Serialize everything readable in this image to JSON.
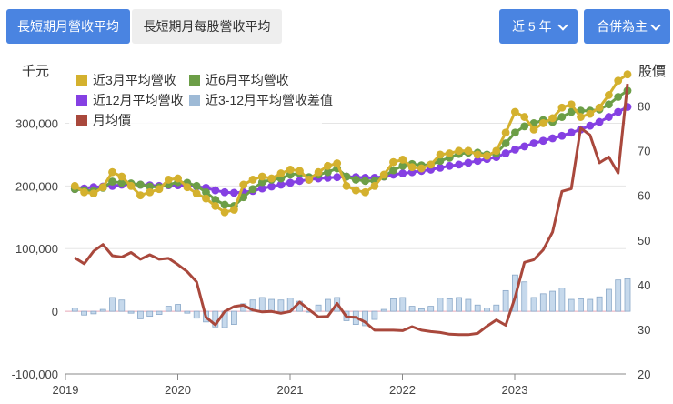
{
  "tabs": {
    "active": "長短期月營收平均",
    "inactive": "長短期月每股營收平均"
  },
  "controls": {
    "years_label": "近 5 年",
    "merge_label": "合併為主"
  },
  "chart_data": {
    "type": "line",
    "left_axis_title": "千元",
    "right_axis_title": "股價",
    "y_left_ticks": [
      "-100,000",
      "0",
      "100,000",
      "200,000",
      "300,000"
    ],
    "y_left_ticks_values": [
      -100000,
      0,
      100000,
      200000,
      300000
    ],
    "y_right_ticks": [
      "20",
      "30",
      "40",
      "50",
      "60",
      "70",
      "80"
    ],
    "y_right_ticks_values": [
      20,
      30,
      40,
      50,
      60,
      70,
      80
    ],
    "x_ticks": [
      "2019",
      "2020",
      "2021",
      "2022",
      "2023"
    ],
    "ylim_left": [
      -100000,
      395000
    ],
    "ylim_right": [
      20,
      89.5
    ],
    "legend": [
      "近3月平均營收",
      "近6月平均營收",
      "近12月平均營收",
      "近3-12月平均營收差值",
      "月均價"
    ],
    "legend_placement": "top-left",
    "grid": "horizontal",
    "colors": {
      "ma3": "#d4b12e",
      "ma6": "#6c9e47",
      "ma12": "#8540e3",
      "diff": "#9ebad6",
      "price": "#a9483c"
    },
    "months": [
      "2019-01",
      "2019-02",
      "2019-03",
      "2019-04",
      "2019-05",
      "2019-06",
      "2019-07",
      "2019-08",
      "2019-09",
      "2019-10",
      "2019-11",
      "2019-12",
      "2020-01",
      "2020-02",
      "2020-03",
      "2020-04",
      "2020-05",
      "2020-06",
      "2020-07",
      "2020-08",
      "2020-09",
      "2020-10",
      "2020-11",
      "2020-12",
      "2021-01",
      "2021-02",
      "2021-03",
      "2021-04",
      "2021-05",
      "2021-06",
      "2021-07",
      "2021-08",
      "2021-09",
      "2021-10",
      "2021-11",
      "2021-12",
      "2022-01",
      "2022-02",
      "2022-03",
      "2022-04",
      "2022-05",
      "2022-06",
      "2022-07",
      "2022-08",
      "2022-09",
      "2022-10",
      "2022-11",
      "2022-12",
      "2023-01",
      "2023-02",
      "2023-03",
      "2023-04",
      "2023-05",
      "2023-06",
      "2023-07",
      "2023-08",
      "2023-09",
      "2023-10",
      "2023-11",
      "2023-12"
    ],
    "series": [
      {
        "name": "近3月平均營收",
        "values": [
          200000,
          190000,
          188000,
          198000,
          222000,
          215000,
          200000,
          185000,
          190000,
          195000,
          210000,
          212000,
          198000,
          188000,
          180000,
          168000,
          158000,
          162000,
          202000,
          210000,
          215000,
          212000,
          220000,
          226000,
          224000,
          210000,
          222000,
          232000,
          236000,
          200000,
          193000,
          190000,
          200000,
          218000,
          238000,
          242000,
          230000,
          228000,
          234000,
          250000,
          252000,
          256000,
          256000,
          250000,
          248000,
          256000,
          285000,
          318000,
          310000,
          290000,
          300000,
          308000,
          325000,
          330000,
          310000,
          315000,
          325000,
          345000,
          368000,
          378000
        ]
      },
      {
        "name": "近6月平均營收",
        "values": [
          195000,
          193000,
          192000,
          197000,
          207000,
          205000,
          204000,
          202000,
          199000,
          198000,
          202000,
          206000,
          205000,
          200000,
          190000,
          178000,
          170000,
          168000,
          182000,
          195000,
          206000,
          210000,
          212000,
          218000,
          220000,
          214000,
          218000,
          222000,
          228000,
          215000,
          210000,
          208000,
          208000,
          215000,
          225000,
          232000,
          235000,
          233000,
          234000,
          240000,
          245000,
          251000,
          253000,
          253000,
          250000,
          252000,
          268000,
          285000,
          295000,
          300000,
          305000,
          302000,
          310000,
          318000,
          320000,
          320000,
          322000,
          330000,
          342000,
          352000
        ]
      },
      {
        "name": "近12月平均營收",
        "values": [
          195000,
          196000,
          198000,
          199000,
          200000,
          202000,
          203000,
          202000,
          201000,
          200000,
          201000,
          201000,
          201000,
          199000,
          197000,
          193000,
          190000,
          189000,
          190000,
          192000,
          196000,
          199000,
          202000,
          205000,
          208000,
          210000,
          212000,
          213000,
          214000,
          215000,
          214000,
          213000,
          213000,
          215000,
          218000,
          220000,
          222000,
          224000,
          226000,
          229000,
          232000,
          234000,
          237000,
          240000,
          243000,
          246000,
          252000,
          258000,
          263000,
          268000,
          272000,
          276000,
          280000,
          285000,
          290000,
          296000,
          302000,
          310000,
          318000,
          326000
        ]
      },
      {
        "name": "近3-12月平均營收差值",
        "values": [
          5000,
          -6000,
          -4000,
          3000,
          22000,
          18000,
          -3000,
          -12000,
          -8000,
          -5000,
          8000,
          11000,
          -3000,
          -11000,
          -17000,
          -25000,
          -26000,
          -21000,
          12000,
          18000,
          22000,
          19000,
          18000,
          21000,
          16000,
          0,
          10000,
          19000,
          22000,
          -15000,
          -21000,
          -23000,
          -13000,
          3000,
          20000,
          22000,
          8000,
          4000,
          8000,
          21000,
          20000,
          22000,
          19000,
          10000,
          5000,
          10000,
          33000,
          58000,
          47000,
          22000,
          28000,
          32000,
          37000,
          19000,
          20000,
          19000,
          23000,
          35000,
          50000,
          52000
        ]
      },
      {
        "name": "月均價",
        "values": [
          46,
          44.7,
          47.5,
          49,
          46.5,
          46.2,
          47.2,
          45.7,
          46.7,
          45.7,
          45.9,
          44.5,
          42.9,
          40.6,
          32.7,
          31,
          34,
          35.1,
          35.4,
          34.3,
          33.9,
          34,
          33.6,
          34,
          36.1,
          34.4,
          32.8,
          32.9,
          35.8,
          32.8,
          32.7,
          31.6,
          29.8,
          29.8,
          29.8,
          29.7,
          30.6,
          29.8,
          29.5,
          29.3,
          28.9,
          28.8,
          28.8,
          29.1,
          30.7,
          32.1,
          30.9,
          37.2,
          45,
          45.6,
          47.8,
          51.8,
          60.9,
          61.5,
          75.1,
          73.5,
          67.3,
          68.6,
          65,
          85
        ]
      }
    ]
  }
}
